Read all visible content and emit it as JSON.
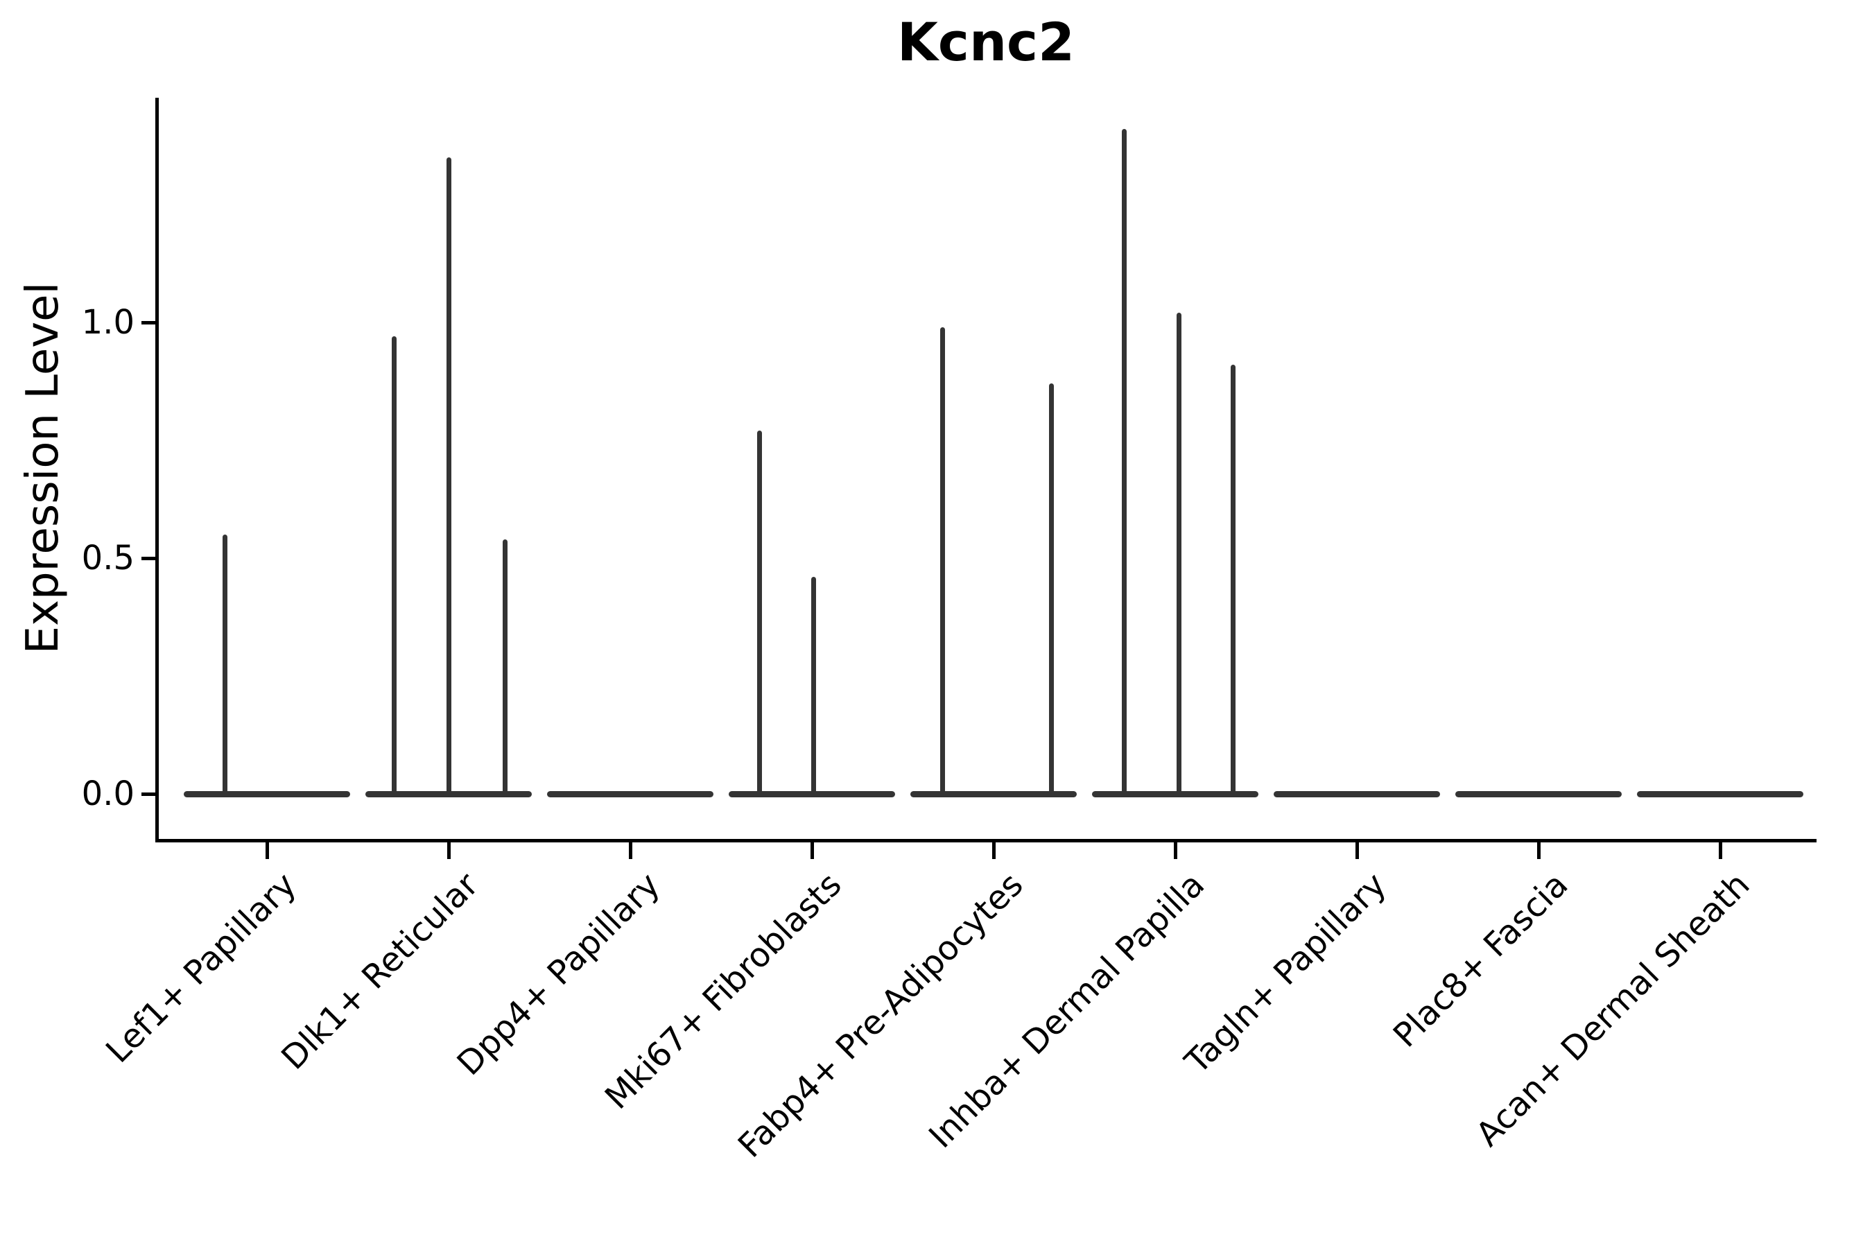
{
  "title": "Kcnc2",
  "colors": {
    "background": "#ffffff",
    "spine": "#000000",
    "violin_line": "#343434",
    "text": "#000000"
  },
  "chart_data": {
    "type": "violin",
    "title": "Kcnc2",
    "xlabel": "",
    "ylabel": "Expression Level",
    "ylim": [
      -0.1,
      1.48
    ],
    "grid": false,
    "legend": "none",
    "y_ticks": [
      {
        "label": "0.0",
        "value": 0.0
      },
      {
        "label": "0.5",
        "value": 0.5
      },
      {
        "label": "1.0",
        "value": 1.0
      }
    ],
    "categories": [
      "Lef1+ Papillary",
      "Dlk1+ Reticular",
      "Dpp4+ Papillary",
      "Mki67+ Fibroblasts",
      "Fabp4+ Pre-Adipocytes",
      "Inhba+ Dermal Papilla",
      "Tagln+ Papillary",
      "Plac8+ Fascia",
      "Acan+ Dermal Sheath"
    ],
    "violins": [
      {
        "category": "Lef1+ Papillary",
        "baseline_value": 0.0,
        "spikes": [
          {
            "pos": -0.23,
            "value": 0.55
          }
        ]
      },
      {
        "category": "Dlk1+ Reticular",
        "baseline_value": 0.0,
        "spikes": [
          {
            "pos": -0.3,
            "value": 0.97
          },
          {
            "pos": 0.0,
            "value": 1.35
          },
          {
            "pos": 0.31,
            "value": 0.54
          }
        ]
      },
      {
        "category": "Dpp4+ Papillary",
        "baseline_value": 0.0,
        "spikes": []
      },
      {
        "category": "Mki67+ Fibroblasts",
        "baseline_value": 0.0,
        "spikes": [
          {
            "pos": -0.29,
            "value": 0.77
          },
          {
            "pos": 0.01,
            "value": 0.46
          }
        ]
      },
      {
        "category": "Fabp4+ Pre-Adipocytes",
        "baseline_value": 0.0,
        "spikes": [
          {
            "pos": -0.28,
            "value": 0.99
          },
          {
            "pos": 0.32,
            "value": 0.87
          }
        ]
      },
      {
        "category": "Inhba+ Dermal Papilla",
        "baseline_value": 0.0,
        "spikes": [
          {
            "pos": -0.28,
            "value": 1.41
          },
          {
            "pos": 0.02,
            "value": 1.02
          },
          {
            "pos": 0.32,
            "value": 0.91
          }
        ]
      },
      {
        "category": "Tagln+ Papillary",
        "baseline_value": 0.0,
        "spikes": []
      },
      {
        "category": "Plac8+ Fascia",
        "baseline_value": 0.0,
        "spikes": []
      },
      {
        "category": "Acan+ Dermal Sheath",
        "baseline_value": 0.0,
        "spikes": []
      }
    ]
  }
}
